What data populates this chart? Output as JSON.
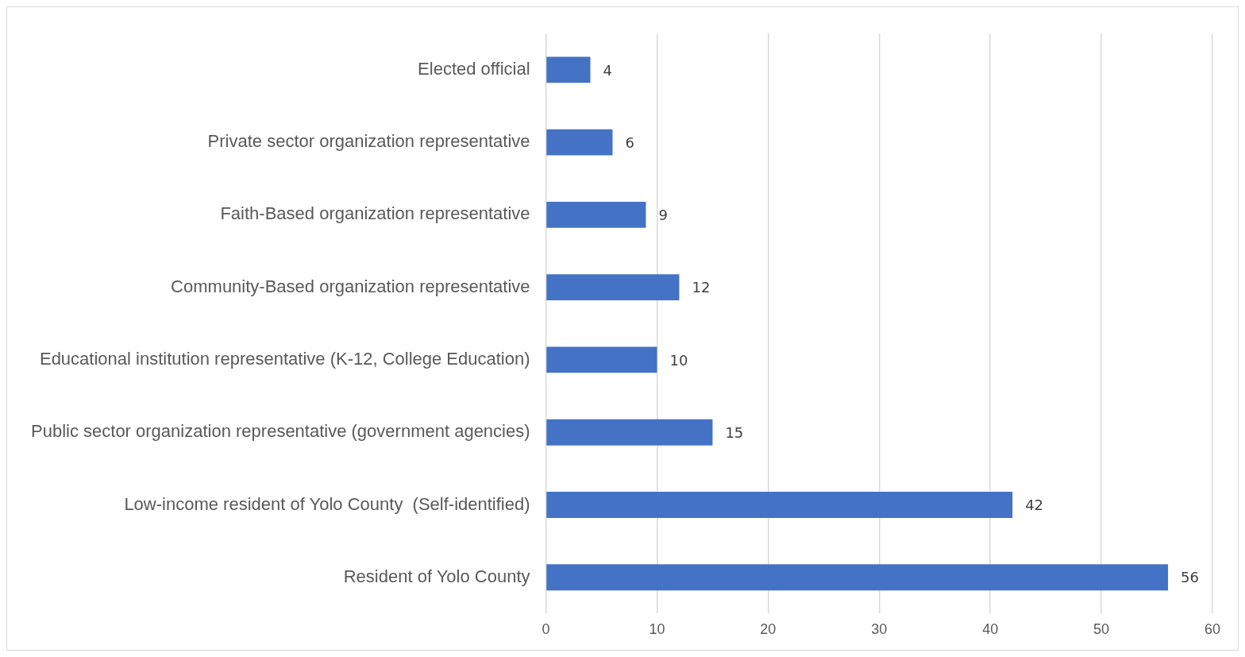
{
  "chart_data": {
    "type": "bar",
    "orientation": "horizontal",
    "categories": [
      "Elected official",
      "Private sector organization representative",
      "Faith-Based organization representative",
      "Community-Based organization representative",
      "Educational institution representative (K-12, College Education)",
      "Public sector organization representative (government agencies)",
      "Low-income resident of Yolo County  (Self-identified)",
      "Resident of Yolo County"
    ],
    "values": [
      4,
      6,
      9,
      12,
      10,
      15,
      42,
      56
    ],
    "color": "#4472c4",
    "xlim": [
      0,
      60
    ],
    "xticks": [
      0,
      10,
      20,
      30,
      40,
      50,
      60
    ],
    "grid": "x",
    "data_labels": true,
    "legend": false
  }
}
